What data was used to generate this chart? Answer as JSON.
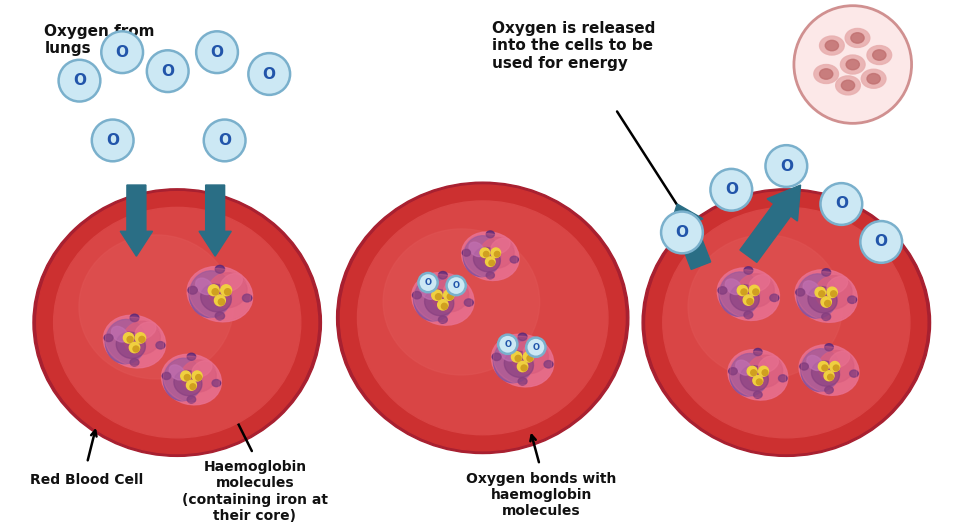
{
  "bg_color": "#ffffff",
  "rbc_border_color": "#a82030",
  "rbc_outer_color": "#cc3030",
  "rbc_inner_color": "#d94545",
  "rbc_highlight": "#e05555",
  "o2_fill": "#cce8f4",
  "o2_border": "#7ab0cc",
  "o2_text": "#2255aa",
  "arrow_color": "#2a6e85",
  "hemo_pink_light": "#e87090",
  "hemo_pink": "#d45878",
  "hemo_purple_light": "#b070c0",
  "hemo_purple": "#8050a0",
  "hemo_dark_purple": "#5a2878",
  "hemo_dark": "#3a1040",
  "iron_yellow": "#f0d040",
  "iron_gold": "#d0a020",
  "iron_orange": "#c06010",
  "text_color": "#111111",
  "cell_fill": "#fce8e8",
  "cell_border": "#d09090",
  "cell_inner_fill": "#e8b0b0",
  "cell_nucleus": "#c07070",
  "labels": {
    "oxygen_from_lungs": "Oxygen from\nlungs",
    "red_blood_cell": "Red Blood Cell",
    "haemoglobin": "Haemoglobin\nmolecules\n(containing iron at\ntheir core)",
    "oxygen_bonds": "Oxygen bonds with\nhaemoglobin\nmolecules",
    "oxygen_released": "Oxygen is released\ninto the cells to be\nused for energy"
  }
}
